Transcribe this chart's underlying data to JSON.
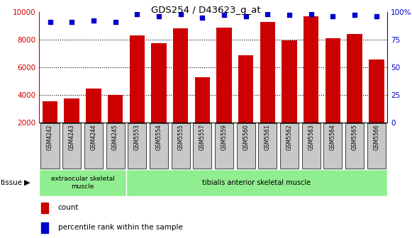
{
  "title": "GDS254 / D43623_g_at",
  "categories": [
    "GSM4242",
    "GSM4243",
    "GSM4244",
    "GSM4245",
    "GSM5553",
    "GSM5554",
    "GSM5555",
    "GSM5557",
    "GSM5559",
    "GSM5560",
    "GSM5561",
    "GSM5562",
    "GSM5563",
    "GSM5564",
    "GSM5565",
    "GSM5566"
  ],
  "counts": [
    3550,
    3750,
    4450,
    3980,
    8300,
    7750,
    8800,
    5280,
    8850,
    6850,
    9250,
    7950,
    9700,
    8100,
    8400,
    6550
  ],
  "percentiles": [
    91,
    91,
    92,
    91,
    98,
    96,
    98,
    95,
    97,
    96,
    98,
    97,
    98,
    96,
    97,
    96
  ],
  "bar_color": "#cc0000",
  "dot_color": "#0000cc",
  "ylim_left": [
    2000,
    10000
  ],
  "ylim_right": [
    0,
    100
  ],
  "yticks_left": [
    2000,
    4000,
    6000,
    8000,
    10000
  ],
  "yticks_right": [
    0,
    25,
    50,
    75,
    100
  ],
  "tissue_group1": "extraocular skeletal\nmuscle",
  "tissue_group1_count": 4,
  "tissue_group2": "tibialis anterior skeletal muscle",
  "tissue_group2_count": 12,
  "tissue_label": "tissue",
  "legend_count_label": "count",
  "legend_percentile_label": "percentile rank within the sample",
  "plot_bg_color": "#ffffff",
  "tissue_color": "#90ee90",
  "axis_left_color": "#cc0000",
  "axis_right_color": "#0000cc",
  "xtick_bg_color": "#c8c8c8"
}
